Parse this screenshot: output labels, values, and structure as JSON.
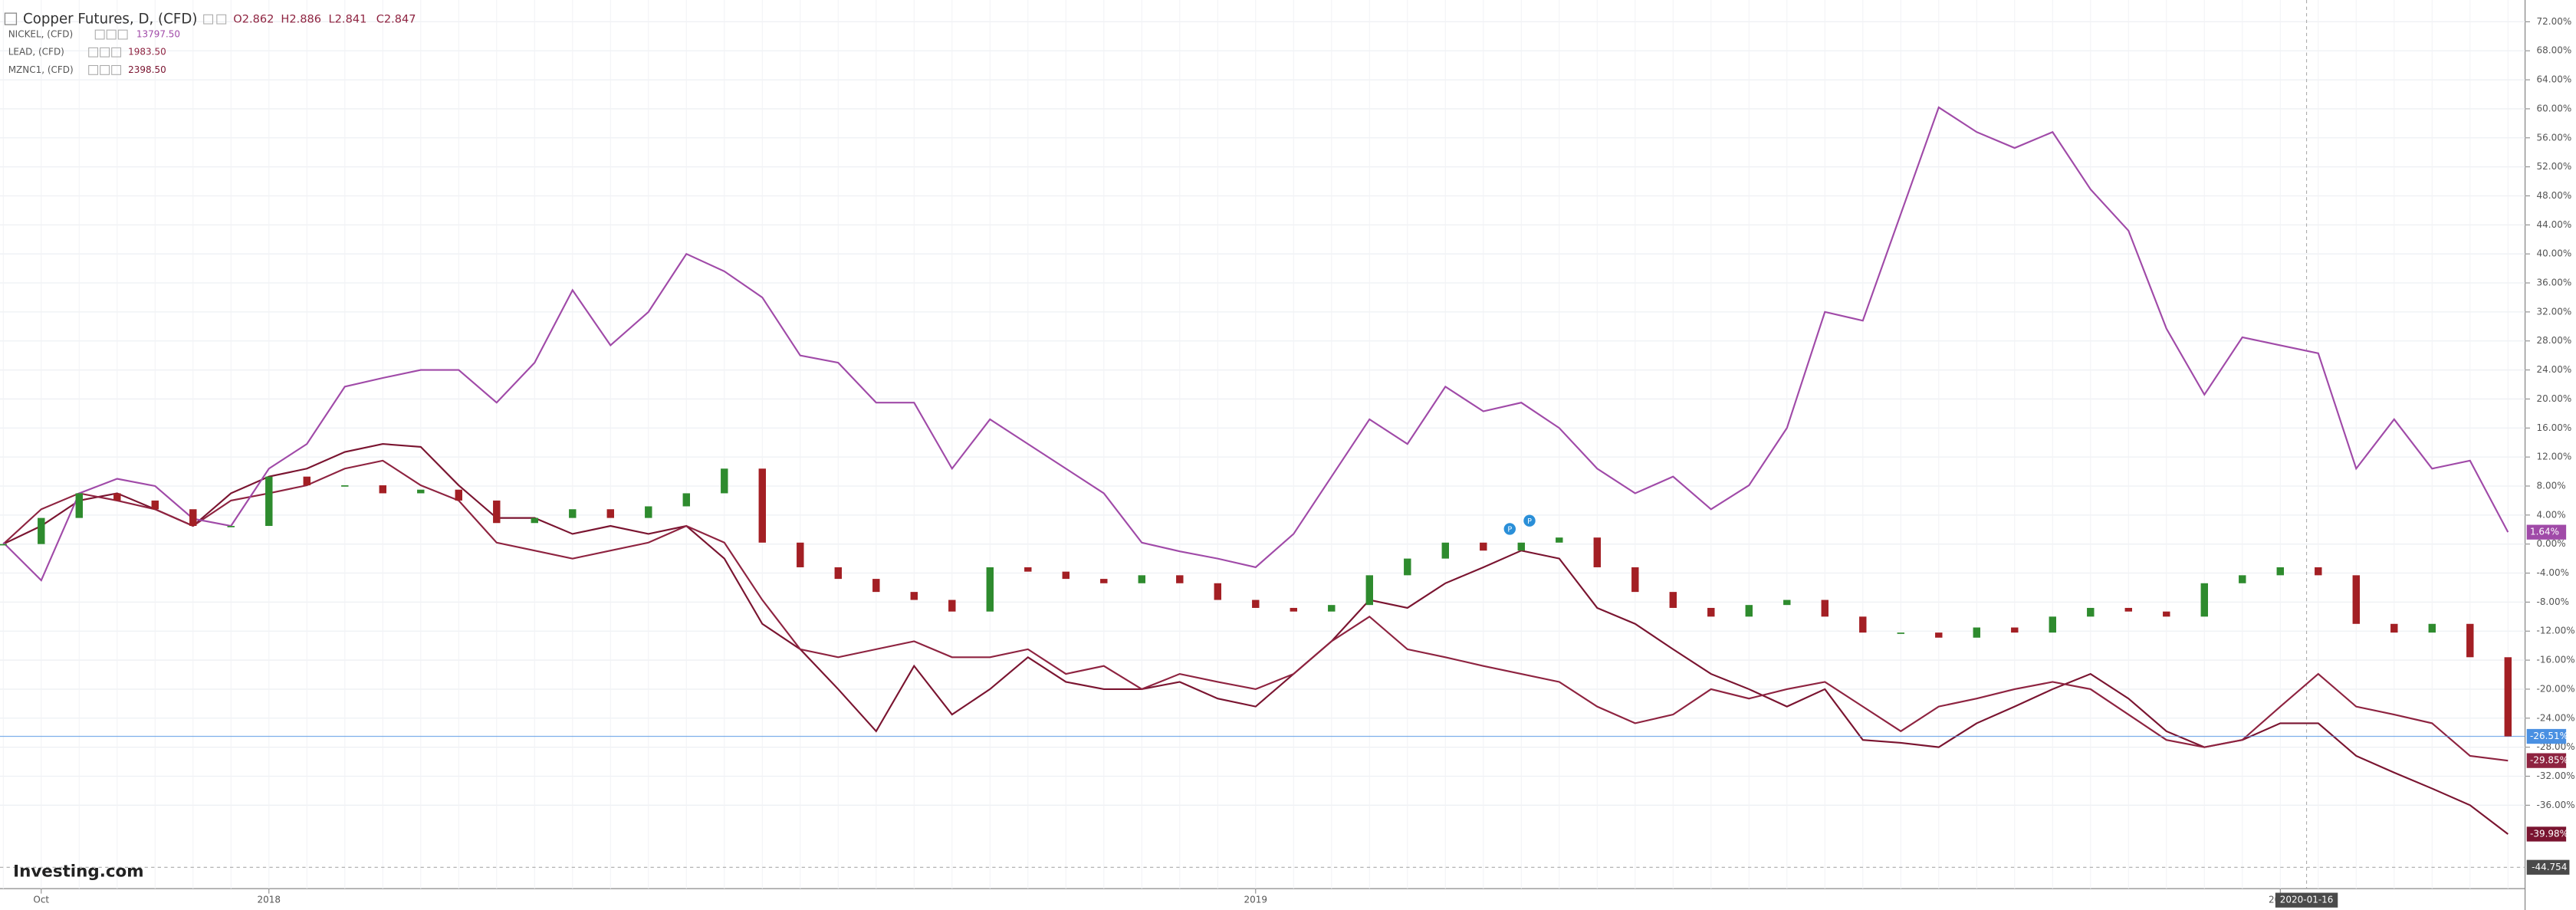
{
  "chart_data": {
    "type": "line",
    "ohlc": [
      "O2.862",
      "H2.886",
      "L2.841",
      "C2.847"
    ],
    "categories": [
      null,
      "Oct",
      null,
      null,
      null,
      null,
      null,
      "2018",
      null,
      null,
      null,
      null,
      null,
      null,
      null,
      null,
      null,
      null,
      null,
      null,
      null,
      null,
      null,
      null,
      null,
      null,
      null,
      null,
      null,
      null,
      null,
      null,
      null,
      "2019",
      null,
      null,
      null,
      null,
      null,
      null,
      null,
      null,
      null,
      null,
      null,
      null,
      null,
      null,
      null,
      null,
      null,
      null,
      null,
      null,
      null,
      null,
      null,
      null,
      null,
      null,
      "2020",
      null,
      null,
      null,
      null,
      null,
      null
    ],
    "crosshair_x_label": "2020-01-16",
    "crosshair_y_label": "-44.754",
    "logo": "Investing.com",
    "event_markers": [
      "P",
      "P"
    ],
    "ylim": [
      -47.5,
      75
    ],
    "yticks": [
      {
        "value": -36,
        "label": "-36.00%"
      },
      {
        "value": -32,
        "label": "-32.00%"
      },
      {
        "value": -28,
        "label": "-28.00%"
      },
      {
        "value": -24,
        "label": "-24.00%"
      },
      {
        "value": -20,
        "label": "-20.00%"
      },
      {
        "value": -16,
        "label": "-16.00%"
      },
      {
        "value": -12,
        "label": "-12.00%"
      },
      {
        "value": -8,
        "label": "-8.00%"
      },
      {
        "value": -4,
        "label": "-4.00%"
      },
      {
        "value": 0,
        "label": "0.00%"
      },
      {
        "value": 4,
        "label": "4.00%"
      },
      {
        "value": 8,
        "label": "8.00%"
      },
      {
        "value": 12,
        "label": "12.00%"
      },
      {
        "value": 16,
        "label": "16.00%"
      },
      {
        "value": 20,
        "label": "20.00%"
      },
      {
        "value": 24,
        "label": "24.00%"
      },
      {
        "value": 28,
        "label": "28.00%"
      },
      {
        "value": 32,
        "label": "32.00%"
      },
      {
        "value": 36,
        "label": "36.00%"
      },
      {
        "value": 40,
        "label": "40.00%"
      },
      {
        "value": 44,
        "label": "44.00%"
      },
      {
        "value": 48,
        "label": "48.00%"
      },
      {
        "value": 52,
        "label": "52.00%"
      },
      {
        "value": 56,
        "label": "56.00%"
      },
      {
        "value": 60,
        "label": "60.00%"
      },
      {
        "value": 64,
        "label": "64.00%"
      },
      {
        "value": 68,
        "label": "68.00%"
      },
      {
        "value": 72,
        "label": "72.00%"
      }
    ],
    "grid": true,
    "series": [
      {
        "name": "Copper Futures, D, (CFD)",
        "style": "candle",
        "color": "#4a90e2",
        "up_color": "#2e8b2e",
        "down_color": "#a31f24",
        "values": [
          0,
          3.6,
          7,
          6,
          4.8,
          2.5,
          2.5,
          9.3,
          8.1,
          8.1,
          7,
          7.5,
          6,
          2.9,
          3.6,
          4.8,
          3.6,
          5.2,
          7,
          10.4,
          0.2,
          -3.2,
          -4.8,
          -6.6,
          -7.7,
          -9.3,
          -3.2,
          -3.8,
          -4.8,
          -5.4,
          -4.3,
          -5.4,
          -7.7,
          -8.8,
          -9.3,
          -8.4,
          -4.3,
          -2,
          0.2,
          -0.9,
          0.2,
          0.9,
          -3.2,
          -6.6,
          -8.8,
          -10,
          -8.4,
          -7.7,
          -10,
          -12.2,
          -12.2,
          -12.9,
          -11.5,
          -12.2,
          -10,
          -8.8,
          -9.3,
          -10,
          -5.4,
          -4.3,
          -3.2,
          -4.3,
          -11,
          -12.2,
          -11,
          -15.6,
          -26.51
        ],
        "value_labels": [
          null,
          null,
          null,
          null,
          null,
          null,
          null,
          null,
          null,
          null,
          null,
          null,
          null,
          null,
          null,
          null,
          null,
          null,
          null,
          null,
          null,
          null,
          null,
          null,
          null,
          null,
          null,
          null,
          null,
          null,
          null,
          null,
          null,
          null,
          null,
          null,
          null,
          null,
          null,
          null,
          null,
          null,
          null,
          null,
          null,
          null,
          null,
          null,
          null,
          null,
          null,
          null,
          null,
          null,
          null,
          null,
          null,
          null,
          null,
          null,
          null,
          null,
          null,
          null,
          null,
          null,
          "-26.51%"
        ]
      },
      {
        "name": "NICKEL, (CFD)",
        "style": "line",
        "color": "#a04aa8",
        "legend_value": "13797.50",
        "values": [
          0.2,
          -5,
          7,
          9,
          8,
          3.5,
          2.5,
          10.4,
          13.8,
          21.7,
          22.9,
          24,
          24,
          19.5,
          25,
          35,
          27.4,
          32,
          40,
          37.6,
          34,
          26,
          25,
          19.5,
          19.5,
          10.4,
          17.2,
          13.8,
          10.4,
          7,
          0.2,
          -1,
          -2,
          -3.2,
          1.4,
          9.3,
          17.2,
          13.8,
          21.7,
          18.3,
          19.5,
          16,
          10.4,
          7,
          9.3,
          4.8,
          8.1,
          16,
          32,
          30.8,
          45.5,
          60.2,
          56.8,
          54.6,
          56.8,
          48.9,
          43.2,
          29.7,
          20.6,
          28.5,
          27.4,
          26.3,
          10.4,
          17.2,
          10.4,
          11.5,
          1.64
        ],
        "value_labels": [
          null,
          null,
          null,
          null,
          null,
          null,
          null,
          null,
          null,
          null,
          null,
          null,
          null,
          null,
          null,
          null,
          null,
          null,
          null,
          null,
          null,
          null,
          null,
          null,
          null,
          null,
          null,
          null,
          null,
          null,
          null,
          null,
          null,
          null,
          null,
          null,
          null,
          null,
          null,
          null,
          null,
          null,
          null,
          null,
          null,
          null,
          null,
          null,
          null,
          null,
          null,
          null,
          null,
          null,
          null,
          null,
          null,
          null,
          null,
          null,
          null,
          null,
          null,
          null,
          null,
          null,
          "1.64%"
        ]
      },
      {
        "name": "LEAD, (CFD)",
        "style": "line",
        "color": "#8e2340",
        "legend_value": "1983.50",
        "values": [
          0,
          4.8,
          7,
          6,
          4.8,
          2.5,
          6,
          7,
          8.1,
          10.4,
          11.5,
          8.1,
          6,
          0.2,
          -0.9,
          -2,
          -0.9,
          0.2,
          2.5,
          0.2,
          -7.7,
          -14.5,
          -15.6,
          -14.5,
          -13.4,
          -15.6,
          -15.6,
          -14.5,
          -17.9,
          -16.8,
          -20,
          -17.9,
          -19,
          -20,
          -17.9,
          -13.4,
          -10,
          -14.5,
          -15.6,
          -16.8,
          -17.9,
          -19,
          -22.4,
          -24.7,
          -23.5,
          -20,
          -21.3,
          -20,
          -19,
          -22.4,
          -25.8,
          -22.4,
          -21.3,
          -20,
          -19,
          -20,
          -23.5,
          -27,
          -28,
          -27,
          -22.4,
          -17.9,
          -22.4,
          -23.5,
          -24.7,
          -29.2,
          -29.85
        ],
        "value_labels": [
          null,
          null,
          null,
          null,
          null,
          null,
          null,
          null,
          null,
          null,
          null,
          null,
          null,
          null,
          null,
          null,
          null,
          null,
          null,
          null,
          null,
          null,
          null,
          null,
          null,
          null,
          null,
          null,
          null,
          null,
          null,
          null,
          null,
          null,
          null,
          null,
          null,
          null,
          null,
          null,
          null,
          null,
          null,
          null,
          null,
          null,
          null,
          null,
          null,
          null,
          null,
          null,
          null,
          null,
          null,
          null,
          null,
          null,
          null,
          null,
          null,
          null,
          null,
          null,
          null,
          null,
          "-29.85%"
        ]
      },
      {
        "name": "MZNC1, (CFD)",
        "style": "line",
        "color": "#7a1430",
        "legend_value": "2398.50",
        "values": [
          0,
          2.5,
          6,
          7,
          4.8,
          2.5,
          7,
          9.3,
          10.4,
          12.7,
          13.8,
          13.4,
          8.1,
          3.6,
          3.6,
          1.4,
          2.5,
          1.4,
          2.5,
          -2,
          -11,
          -14.5,
          -20,
          -25.8,
          -16.8,
          -23.5,
          -20,
          -15.6,
          -19,
          -20,
          -20,
          -19,
          -21.3,
          -22.4,
          -17.9,
          -13.4,
          -7.7,
          -8.8,
          -5.4,
          -3.2,
          -0.9,
          -2,
          -8.8,
          -11,
          -14.5,
          -17.9,
          -20,
          -22.4,
          -20,
          -27,
          -27.4,
          -28,
          -24.7,
          -22.4,
          -20,
          -17.9,
          -21.3,
          -25.8,
          -28,
          -27,
          -24.7,
          -24.7,
          -29.2,
          -31.5,
          -33.7,
          -36,
          -39.98
        ],
        "value_labels": [
          null,
          null,
          null,
          null,
          null,
          null,
          null,
          null,
          null,
          null,
          null,
          null,
          null,
          null,
          null,
          null,
          null,
          null,
          null,
          null,
          null,
          null,
          null,
          null,
          null,
          null,
          null,
          null,
          null,
          null,
          null,
          null,
          null,
          null,
          null,
          null,
          null,
          null,
          null,
          null,
          null,
          null,
          null,
          null,
          null,
          null,
          null,
          null,
          null,
          null,
          null,
          null,
          null,
          null,
          null,
          null,
          null,
          null,
          null,
          null,
          null,
          null,
          null,
          null,
          null,
          null,
          "-39.98%"
        ]
      }
    ]
  }
}
